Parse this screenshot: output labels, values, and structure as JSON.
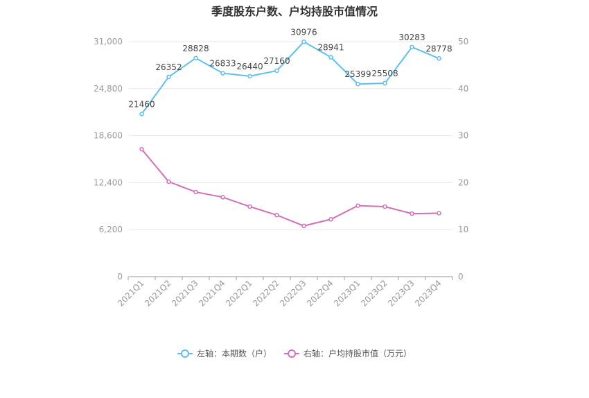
{
  "chart_data": {
    "type": "line",
    "title": "季度股东户数、户均持股市值情况",
    "categories": [
      "2021Q1",
      "2021Q2",
      "2021Q3",
      "2021Q4",
      "2022Q1",
      "2022Q2",
      "2022Q3",
      "2022Q4",
      "2023Q1",
      "2023Q2",
      "2023Q3",
      "2023Q4"
    ],
    "left_axis": {
      "ylim": [
        0,
        31000
      ],
      "ticks": [
        "0",
        "6,200",
        "12,400",
        "18,600",
        "24,800",
        "31,000"
      ]
    },
    "right_axis": {
      "ylim": [
        0,
        50
      ],
      "ticks": [
        "0",
        "10",
        "20",
        "30",
        "40",
        "50"
      ]
    },
    "series": [
      {
        "name": "左轴：本期数（户）",
        "axis": "left",
        "color": "#5bc0f0",
        "values": [
          21460,
          26352,
          28828,
          26833,
          26440,
          27160,
          30976,
          28941,
          25399,
          25508,
          30283,
          28778
        ],
        "labels": [
          "21460",
          "26352",
          "28828",
          "26833",
          "26440",
          "27160",
          "30976",
          "28941",
          "25399",
          "25508",
          "30283",
          "28778"
        ]
      },
      {
        "name": "右轴：户均持股市值（万元）",
        "axis": "right",
        "color": "#d36fb6",
        "values": [
          27.1,
          20.2,
          18.0,
          16.9,
          14.9,
          13.1,
          10.8,
          12.2,
          15.1,
          14.9,
          13.4,
          13.5
        ]
      }
    ],
    "grid": true,
    "legend_position": "bottom"
  }
}
